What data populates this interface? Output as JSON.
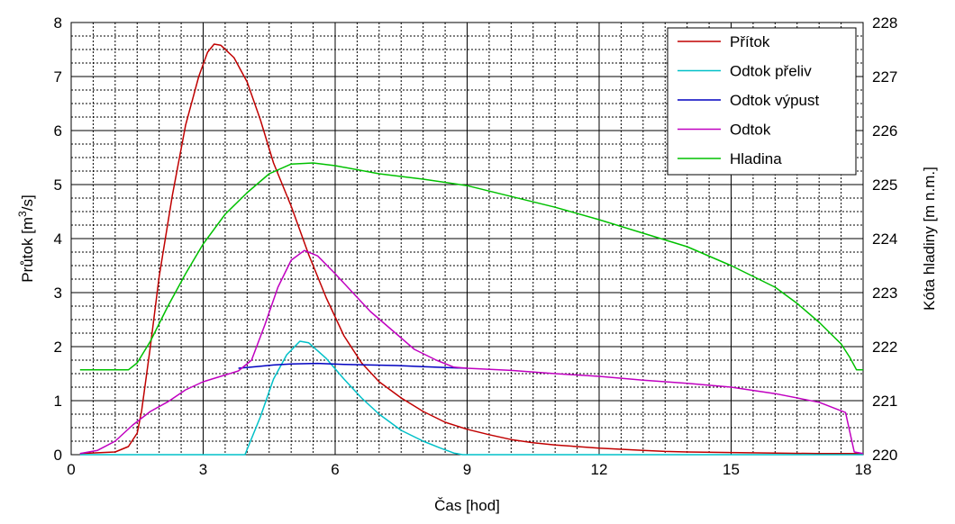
{
  "chart_data": {
    "type": "line",
    "xlabel": "Čas [hod]",
    "ylabel_left": {
      "prefix": "Průtok [m",
      "sup": "3",
      "suffix": "/s]"
    },
    "ylabel_right": "Kóta hladiny [m n.m.]",
    "x_range": [
      0,
      18
    ],
    "x_ticks": [
      "0",
      "3",
      "6",
      "9",
      "12",
      "15",
      "18"
    ],
    "y_left_range": [
      0,
      8
    ],
    "y_left_ticks": [
      "0",
      "1",
      "2",
      "3",
      "4",
      "5",
      "6",
      "7",
      "8"
    ],
    "y_right_range": [
      220,
      228
    ],
    "y_right_ticks": [
      "220",
      "221",
      "222",
      "223",
      "224",
      "225",
      "226",
      "227",
      "228"
    ],
    "grid": {
      "major": true,
      "minor": true
    },
    "legend_position": "top-right",
    "series": [
      {
        "name": "Přítok",
        "color": "#c00000",
        "axis": "left",
        "points": [
          [
            0.2,
            0.02
          ],
          [
            1.0,
            0.05
          ],
          [
            1.3,
            0.15
          ],
          [
            1.5,
            0.4
          ],
          [
            1.6,
            0.8
          ],
          [
            1.8,
            2.0
          ],
          [
            2.0,
            3.3
          ],
          [
            2.3,
            4.8
          ],
          [
            2.6,
            6.1
          ],
          [
            2.9,
            7.0
          ],
          [
            3.1,
            7.45
          ],
          [
            3.25,
            7.6
          ],
          [
            3.4,
            7.58
          ],
          [
            3.7,
            7.35
          ],
          [
            4.0,
            6.9
          ],
          [
            4.3,
            6.2
          ],
          [
            4.6,
            5.4
          ],
          [
            5.0,
            4.6
          ],
          [
            5.4,
            3.7
          ],
          [
            5.8,
            2.9
          ],
          [
            6.2,
            2.2
          ],
          [
            6.6,
            1.7
          ],
          [
            7.0,
            1.35
          ],
          [
            7.5,
            1.05
          ],
          [
            8.0,
            0.8
          ],
          [
            8.5,
            0.6
          ],
          [
            9.0,
            0.47
          ],
          [
            9.5,
            0.37
          ],
          [
            10.0,
            0.28
          ],
          [
            10.5,
            0.22
          ],
          [
            11.0,
            0.18
          ],
          [
            11.5,
            0.15
          ],
          [
            12.0,
            0.12
          ],
          [
            12.5,
            0.1
          ],
          [
            13.0,
            0.08
          ],
          [
            13.5,
            0.06
          ],
          [
            14.0,
            0.05
          ],
          [
            15.0,
            0.04
          ],
          [
            16.0,
            0.03
          ],
          [
            17.0,
            0.02
          ],
          [
            18.0,
            0.02
          ]
        ]
      },
      {
        "name": "Odtok přeliv",
        "color": "#00c0c8",
        "axis": "left",
        "points": [
          [
            0.2,
            0
          ],
          [
            3.95,
            0
          ],
          [
            4.3,
            0.7
          ],
          [
            4.6,
            1.4
          ],
          [
            4.9,
            1.85
          ],
          [
            5.2,
            2.1
          ],
          [
            5.4,
            2.07
          ],
          [
            5.8,
            1.78
          ],
          [
            6.2,
            1.4
          ],
          [
            6.6,
            1.05
          ],
          [
            7.0,
            0.75
          ],
          [
            7.5,
            0.45
          ],
          [
            8.0,
            0.25
          ],
          [
            8.4,
            0.12
          ],
          [
            8.7,
            0.03
          ],
          [
            8.9,
            0
          ],
          [
            18.0,
            0
          ]
        ]
      },
      {
        "name": "Odtok výpust",
        "color": "#0000c0",
        "axis": "left",
        "points": [
          [
            3.8,
            1.6
          ],
          [
            4.2,
            1.63
          ],
          [
            4.6,
            1.66
          ],
          [
            5.0,
            1.68
          ],
          [
            5.6,
            1.69
          ],
          [
            6.2,
            1.67
          ],
          [
            6.8,
            1.66
          ],
          [
            7.4,
            1.65
          ],
          [
            8.0,
            1.63
          ],
          [
            8.6,
            1.61
          ],
          [
            9.0,
            1.6
          ]
        ]
      },
      {
        "name": "Odtok",
        "color": "#c000c0",
        "axis": "left",
        "points": [
          [
            0.2,
            0.02
          ],
          [
            0.6,
            0.08
          ],
          [
            1.0,
            0.25
          ],
          [
            1.4,
            0.55
          ],
          [
            1.8,
            0.8
          ],
          [
            2.2,
            0.98
          ],
          [
            2.6,
            1.2
          ],
          [
            3.0,
            1.35
          ],
          [
            3.4,
            1.45
          ],
          [
            3.8,
            1.55
          ],
          [
            4.1,
            1.75
          ],
          [
            4.4,
            2.4
          ],
          [
            4.7,
            3.1
          ],
          [
            5.0,
            3.6
          ],
          [
            5.3,
            3.78
          ],
          [
            5.6,
            3.68
          ],
          [
            6.0,
            3.35
          ],
          [
            6.4,
            3.0
          ],
          [
            6.8,
            2.65
          ],
          [
            7.3,
            2.3
          ],
          [
            7.8,
            1.95
          ],
          [
            8.3,
            1.75
          ],
          [
            8.7,
            1.62
          ],
          [
            9.0,
            1.6
          ],
          [
            10.0,
            1.56
          ],
          [
            11.0,
            1.5
          ],
          [
            12.0,
            1.45
          ],
          [
            13.0,
            1.38
          ],
          [
            14.0,
            1.32
          ],
          [
            15.0,
            1.25
          ],
          [
            16.0,
            1.13
          ],
          [
            17.0,
            0.97
          ],
          [
            17.6,
            0.78
          ],
          [
            17.8,
            0.05
          ],
          [
            18.0,
            0.02
          ]
        ]
      },
      {
        "name": "Hladina",
        "color": "#00c000",
        "axis": "right",
        "points": [
          [
            0.2,
            221.57
          ],
          [
            1.3,
            221.57
          ],
          [
            1.5,
            221.7
          ],
          [
            1.8,
            222.1
          ],
          [
            2.2,
            222.75
          ],
          [
            2.6,
            223.35
          ],
          [
            3.0,
            223.9
          ],
          [
            3.5,
            224.45
          ],
          [
            4.0,
            224.85
          ],
          [
            4.5,
            225.2
          ],
          [
            5.0,
            225.38
          ],
          [
            5.5,
            225.4
          ],
          [
            6.0,
            225.35
          ],
          [
            7.0,
            225.2
          ],
          [
            8.0,
            225.1
          ],
          [
            9.0,
            224.98
          ],
          [
            10.0,
            224.78
          ],
          [
            11.0,
            224.58
          ],
          [
            12.0,
            224.35
          ],
          [
            13.0,
            224.1
          ],
          [
            14.0,
            223.85
          ],
          [
            15.0,
            223.5
          ],
          [
            16.0,
            223.1
          ],
          [
            16.5,
            222.8
          ],
          [
            17.0,
            222.45
          ],
          [
            17.5,
            222.05
          ],
          [
            17.7,
            221.8
          ],
          [
            17.85,
            221.57
          ],
          [
            18.0,
            221.57
          ]
        ]
      }
    ]
  }
}
